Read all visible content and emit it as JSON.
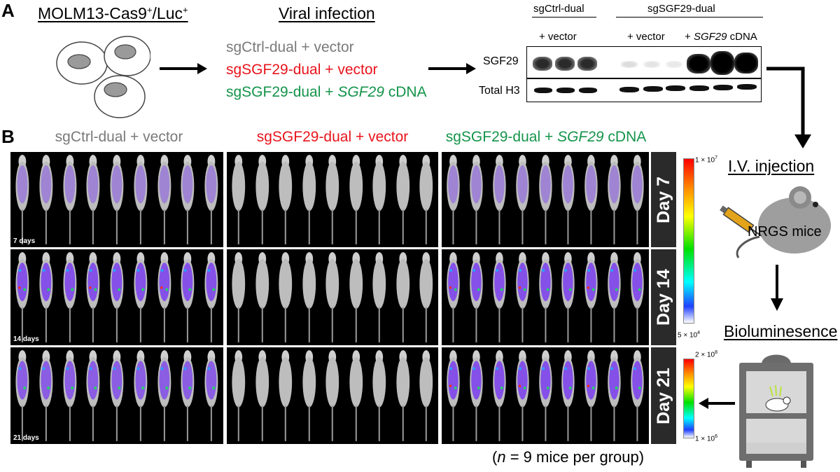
{
  "panels": {
    "a": "A",
    "b": "B"
  },
  "cells_title": {
    "prefix": "MOLM13-Cas9",
    "sup1": "+",
    "mid": "/Luc",
    "sup2": "+"
  },
  "infection_title": "Viral infection",
  "groups": [
    {
      "pre": "sgCtrl-dual + vector",
      "ital": "",
      "post": "",
      "color": "#7a7a7a"
    },
    {
      "pre": "sgSGF29-dual + vector",
      "ital": "",
      "post": "",
      "color": "#e8141b"
    },
    {
      "pre": "sgSGF29-dual + ",
      "ital": "SGF29",
      "post": " cDNA",
      "color": "#14944a"
    }
  ],
  "blot": {
    "head1": "sgCtrl-dual",
    "head2": "sgSGF29-dual",
    "sub1": "+ vector",
    "sub2": "+ vector",
    "sub3_pre": "+ ",
    "sub3_ital": "SGF29",
    "sub3_post": " cDNA",
    "row1": "SGF29",
    "row2": "Total H3"
  },
  "workflow": {
    "iv": "I.V. injection",
    "mice": "NRGS mice",
    "bio": "Bioluminesence"
  },
  "days": [
    "Day 7",
    "Day 14",
    "Day 21"
  ],
  "day_labels": [
    "7 days",
    "14 days",
    "21 days"
  ],
  "scale1": {
    "top_base": "1 × 10",
    "top_exp": "7",
    "bot_base": "5 × 10",
    "bot_exp": "4"
  },
  "scale2": {
    "top_base": "2 × 10",
    "top_exp": "8",
    "bot_base": "1 × 10",
    "bot_exp": "6"
  },
  "n_note": {
    "n": "n",
    "rest": " = 9 mice per group)",
    "open": "("
  },
  "colors": {
    "ctrl": "#7a7a7a",
    "ko": "#e8141b",
    "rescue": "#14944a"
  }
}
